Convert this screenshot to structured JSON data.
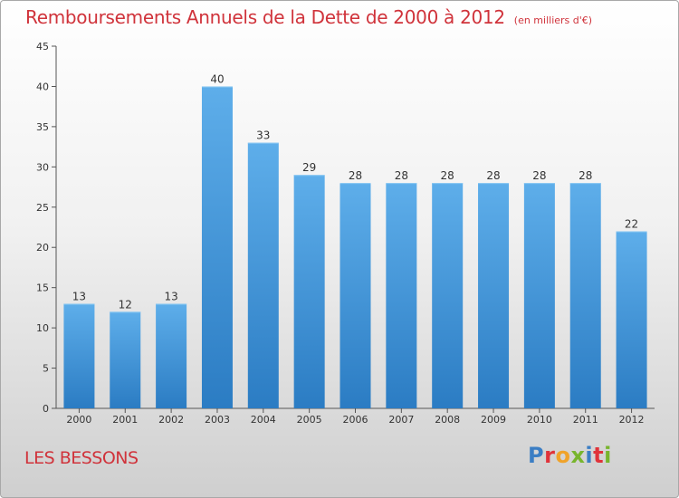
{
  "title": "Remboursements Annuels de la Dette de 2000 à 2012",
  "unit_note": "(en milliers d'€)",
  "place_name": "LES BESSONS",
  "logo": {
    "text": "Proxiti",
    "colors": [
      "#3b7ec4",
      "#e0333a",
      "#f0a32a",
      "#78b52d"
    ]
  },
  "colors": {
    "bar_light": "#5eaeea",
    "bar_dark": "#2b7cc3",
    "title": "#d0333b",
    "axis": "#555555",
    "grid": "#dddddd"
  },
  "chart_data": {
    "type": "bar",
    "title": "Remboursements Annuels de la Dette de 2000 à 2012",
    "xlabel": "",
    "ylabel": "",
    "categories": [
      "2000",
      "2001",
      "2002",
      "2003",
      "2004",
      "2005",
      "2006",
      "2007",
      "2008",
      "2009",
      "2010",
      "2011",
      "2012"
    ],
    "values": [
      13,
      12,
      13,
      40,
      33,
      29,
      28,
      28,
      28,
      28,
      28,
      28,
      22
    ],
    "ylim": [
      0,
      45
    ],
    "yticks": [
      0,
      5,
      10,
      15,
      20,
      25,
      30,
      35,
      40,
      45
    ],
    "grid": false
  }
}
